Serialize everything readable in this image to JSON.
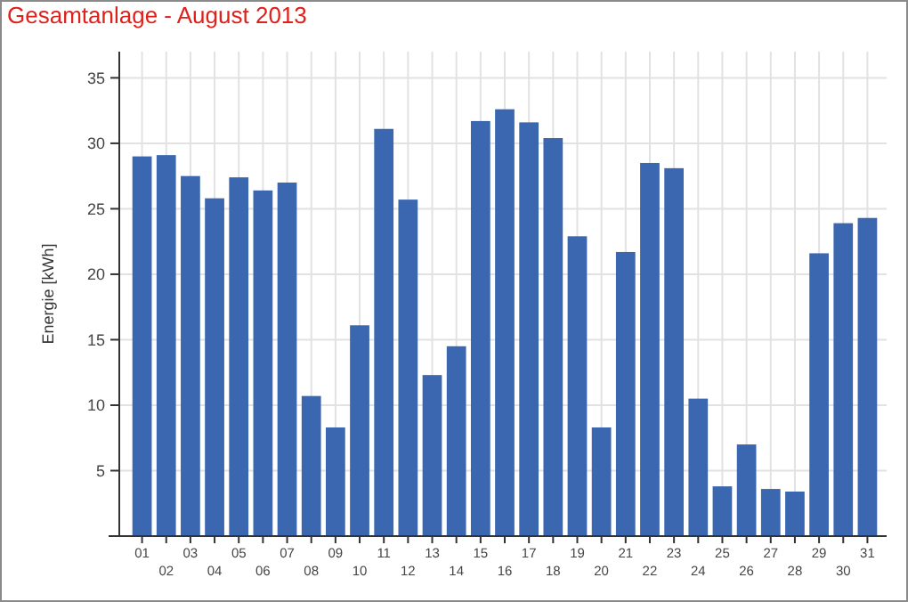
{
  "chart_data": {
    "type": "bar",
    "title": "Gesamtanlage - August 2013",
    "ylabel": "Energie [kWh]",
    "categories": [
      "01",
      "02",
      "03",
      "04",
      "05",
      "06",
      "07",
      "08",
      "09",
      "10",
      "11",
      "12",
      "13",
      "14",
      "15",
      "16",
      "17",
      "18",
      "19",
      "20",
      "21",
      "22",
      "23",
      "24",
      "25",
      "26",
      "27",
      "28",
      "29",
      "30",
      "31"
    ],
    "values": [
      29,
      29.1,
      27.5,
      25.8,
      27.4,
      26.4,
      27,
      10.7,
      8.3,
      16.1,
      31.1,
      25.7,
      12.3,
      14.5,
      31.7,
      32.6,
      31.6,
      30.4,
      22.9,
      8.3,
      21.7,
      28.5,
      28.1,
      10.5,
      3.8,
      7,
      3.6,
      3.4,
      21.6,
      23.9,
      24.3
    ],
    "color": "#3a67b0",
    "ylim": [
      0,
      37
    ],
    "yticks": [
      5,
      10,
      15,
      20,
      25,
      30,
      35
    ],
    "grid": true
  }
}
